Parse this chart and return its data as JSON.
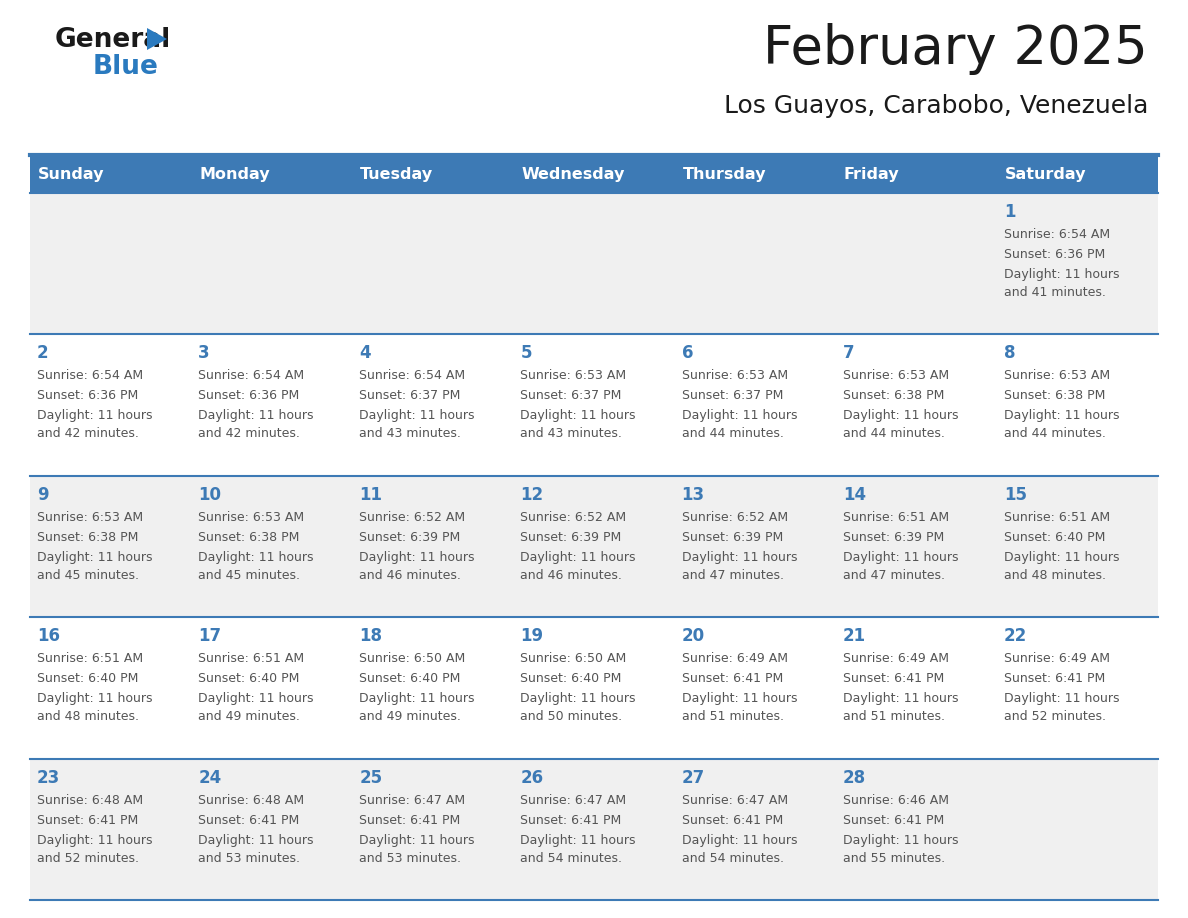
{
  "title": "February 2025",
  "subtitle": "Los Guayos, Carabobo, Venezuela",
  "header_bg_color": "#3d7ab5",
  "header_text_color": "#ffffff",
  "days_of_week": [
    "Sunday",
    "Monday",
    "Tuesday",
    "Wednesday",
    "Thursday",
    "Friday",
    "Saturday"
  ],
  "row_bg_even": "#f0f0f0",
  "row_bg_odd": "#ffffff",
  "cell_border_color": "#3d7ab5",
  "day_number_color": "#3d7ab5",
  "info_text_color": "#555555",
  "calendar": [
    [
      null,
      null,
      null,
      null,
      null,
      null,
      {
        "day": 1,
        "sunrise": "6:54 AM",
        "sunset": "6:36 PM",
        "daylight": "11 hours and 41 minutes."
      }
    ],
    [
      {
        "day": 2,
        "sunrise": "6:54 AM",
        "sunset": "6:36 PM",
        "daylight": "11 hours and 42 minutes."
      },
      {
        "day": 3,
        "sunrise": "6:54 AM",
        "sunset": "6:36 PM",
        "daylight": "11 hours and 42 minutes."
      },
      {
        "day": 4,
        "sunrise": "6:54 AM",
        "sunset": "6:37 PM",
        "daylight": "11 hours and 43 minutes."
      },
      {
        "day": 5,
        "sunrise": "6:53 AM",
        "sunset": "6:37 PM",
        "daylight": "11 hours and 43 minutes."
      },
      {
        "day": 6,
        "sunrise": "6:53 AM",
        "sunset": "6:37 PM",
        "daylight": "11 hours and 44 minutes."
      },
      {
        "day": 7,
        "sunrise": "6:53 AM",
        "sunset": "6:38 PM",
        "daylight": "11 hours and 44 minutes."
      },
      {
        "day": 8,
        "sunrise": "6:53 AM",
        "sunset": "6:38 PM",
        "daylight": "11 hours and 44 minutes."
      }
    ],
    [
      {
        "day": 9,
        "sunrise": "6:53 AM",
        "sunset": "6:38 PM",
        "daylight": "11 hours and 45 minutes."
      },
      {
        "day": 10,
        "sunrise": "6:53 AM",
        "sunset": "6:38 PM",
        "daylight": "11 hours and 45 minutes."
      },
      {
        "day": 11,
        "sunrise": "6:52 AM",
        "sunset": "6:39 PM",
        "daylight": "11 hours and 46 minutes."
      },
      {
        "day": 12,
        "sunrise": "6:52 AM",
        "sunset": "6:39 PM",
        "daylight": "11 hours and 46 minutes."
      },
      {
        "day": 13,
        "sunrise": "6:52 AM",
        "sunset": "6:39 PM",
        "daylight": "11 hours and 47 minutes."
      },
      {
        "day": 14,
        "sunrise": "6:51 AM",
        "sunset": "6:39 PM",
        "daylight": "11 hours and 47 minutes."
      },
      {
        "day": 15,
        "sunrise": "6:51 AM",
        "sunset": "6:40 PM",
        "daylight": "11 hours and 48 minutes."
      }
    ],
    [
      {
        "day": 16,
        "sunrise": "6:51 AM",
        "sunset": "6:40 PM",
        "daylight": "11 hours and 48 minutes."
      },
      {
        "day": 17,
        "sunrise": "6:51 AM",
        "sunset": "6:40 PM",
        "daylight": "11 hours and 49 minutes."
      },
      {
        "day": 18,
        "sunrise": "6:50 AM",
        "sunset": "6:40 PM",
        "daylight": "11 hours and 49 minutes."
      },
      {
        "day": 19,
        "sunrise": "6:50 AM",
        "sunset": "6:40 PM",
        "daylight": "11 hours and 50 minutes."
      },
      {
        "day": 20,
        "sunrise": "6:49 AM",
        "sunset": "6:41 PM",
        "daylight": "11 hours and 51 minutes."
      },
      {
        "day": 21,
        "sunrise": "6:49 AM",
        "sunset": "6:41 PM",
        "daylight": "11 hours and 51 minutes."
      },
      {
        "day": 22,
        "sunrise": "6:49 AM",
        "sunset": "6:41 PM",
        "daylight": "11 hours and 52 minutes."
      }
    ],
    [
      {
        "day": 23,
        "sunrise": "6:48 AM",
        "sunset": "6:41 PM",
        "daylight": "11 hours and 52 minutes."
      },
      {
        "day": 24,
        "sunrise": "6:48 AM",
        "sunset": "6:41 PM",
        "daylight": "11 hours and 53 minutes."
      },
      {
        "day": 25,
        "sunrise": "6:47 AM",
        "sunset": "6:41 PM",
        "daylight": "11 hours and 53 minutes."
      },
      {
        "day": 26,
        "sunrise": "6:47 AM",
        "sunset": "6:41 PM",
        "daylight": "11 hours and 54 minutes."
      },
      {
        "day": 27,
        "sunrise": "6:47 AM",
        "sunset": "6:41 PM",
        "daylight": "11 hours and 54 minutes."
      },
      {
        "day": 28,
        "sunrise": "6:46 AM",
        "sunset": "6:41 PM",
        "daylight": "11 hours and 55 minutes."
      },
      null
    ]
  ],
  "logo_general_color": "#1a1a1a",
  "logo_blue_color": "#2a7abf",
  "figsize": [
    11.88,
    9.18
  ],
  "dpi": 100
}
